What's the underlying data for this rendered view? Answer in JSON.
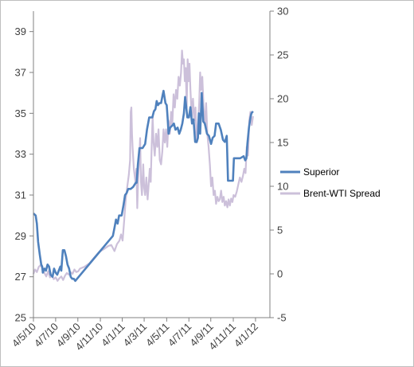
{
  "chart_data": {
    "type": "line",
    "title": "",
    "xlabel": "",
    "ylabel": "",
    "y2label": "",
    "x_tick_labels": [
      "4/5/10",
      "4/7/10",
      "4/9/10",
      "4/11/10",
      "4/1/11",
      "4/3/11",
      "4/5/11",
      "4/7/11",
      "4/9/11",
      "4/11/11",
      "4/1/12"
    ],
    "x_tick_dates": [
      "2010-04-05",
      "2010-06-15",
      "2010-08-25",
      "2010-11-05",
      "2011-01-14",
      "2011-03-25",
      "2011-06-05",
      "2011-08-15",
      "2011-10-24",
      "2012-01-04",
      "2012-03-15"
    ],
    "xlim": [
      "2010-04-05",
      "2012-04-30"
    ],
    "y_left": {
      "ylim": [
        25,
        40
      ],
      "ticks": [
        25,
        27,
        29,
        31,
        33,
        35,
        37,
        39
      ]
    },
    "y_right": {
      "ylim": [
        -5,
        30
      ],
      "ticks": [
        -5,
        0,
        5,
        10,
        15,
        20,
        25,
        30
      ]
    },
    "grid": false,
    "legend": "right",
    "series": [
      {
        "name": "Superior",
        "axis": "left",
        "color": "#4f81bd",
        "points": [
          [
            "2010-04-05",
            30.1
          ],
          [
            "2010-04-12",
            30.0
          ],
          [
            "2010-04-16",
            29.6
          ],
          [
            "2010-04-20",
            28.7
          ],
          [
            "2010-04-25",
            28.1
          ],
          [
            "2010-04-30",
            27.6
          ],
          [
            "2010-05-03",
            27.5
          ],
          [
            "2010-05-05",
            27.2
          ],
          [
            "2010-05-10",
            27.4
          ],
          [
            "2010-05-15",
            27.3
          ],
          [
            "2010-05-20",
            27.6
          ],
          [
            "2010-05-25",
            27.5
          ],
          [
            "2010-05-30",
            27.1
          ],
          [
            "2010-06-05",
            27.0
          ],
          [
            "2010-06-10",
            27.4
          ],
          [
            "2010-06-15",
            27.2
          ],
          [
            "2010-06-20",
            27.1
          ],
          [
            "2010-06-25",
            27.3
          ],
          [
            "2010-06-30",
            27.5
          ],
          [
            "2010-07-03",
            27.3
          ],
          [
            "2010-07-08",
            28.3
          ],
          [
            "2010-07-13",
            28.3
          ],
          [
            "2010-07-18",
            28.0
          ],
          [
            "2010-07-23",
            27.6
          ],
          [
            "2010-07-28",
            27.4
          ],
          [
            "2010-08-02",
            27.0
          ],
          [
            "2010-08-07",
            26.9
          ],
          [
            "2010-08-12",
            26.9
          ],
          [
            "2010-08-17",
            26.8
          ],
          [
            "2010-12-15",
            29.0
          ],
          [
            "2010-12-20",
            29.4
          ],
          [
            "2010-12-25",
            29.8
          ],
          [
            "2010-12-30",
            29.6
          ],
          [
            "2011-01-04",
            30.0
          ],
          [
            "2011-01-12",
            30.0
          ],
          [
            "2011-01-18",
            30.5
          ],
          [
            "2011-01-23",
            31.0
          ],
          [
            "2011-01-28",
            31.1
          ],
          [
            "2011-02-02",
            31.3
          ],
          [
            "2011-02-10",
            31.3
          ],
          [
            "2011-02-18",
            31.4
          ],
          [
            "2011-02-26",
            31.6
          ],
          [
            "2011-03-01",
            31.6
          ],
          [
            "2011-03-05",
            32.5
          ],
          [
            "2011-03-10",
            33.3
          ],
          [
            "2011-03-20",
            33.3
          ],
          [
            "2011-03-28",
            33.5
          ],
          [
            "2011-04-03",
            34.2
          ],
          [
            "2011-04-10",
            34.8
          ],
          [
            "2011-04-20",
            34.8
          ],
          [
            "2011-04-25",
            35.1
          ],
          [
            "2011-04-30",
            35.2
          ],
          [
            "2011-05-04",
            35.6
          ],
          [
            "2011-05-08",
            35.4
          ],
          [
            "2011-05-13",
            35.5
          ],
          [
            "2011-05-18",
            35.5
          ],
          [
            "2011-05-23",
            35.9
          ],
          [
            "2011-05-26",
            36.1
          ],
          [
            "2011-06-01",
            35.5
          ],
          [
            "2011-06-05",
            35.4
          ],
          [
            "2011-06-08",
            34.8
          ],
          [
            "2011-06-11",
            34.0
          ],
          [
            "2011-06-16",
            34.3
          ],
          [
            "2011-06-23",
            34.4
          ],
          [
            "2011-06-28",
            34.5
          ],
          [
            "2011-07-03",
            34.2
          ],
          [
            "2011-07-10",
            34.3
          ],
          [
            "2011-07-15",
            34.0
          ],
          [
            "2011-07-20",
            34.2
          ],
          [
            "2011-07-25",
            34.5
          ],
          [
            "2011-07-30",
            35.0
          ],
          [
            "2011-08-03",
            35.8
          ],
          [
            "2011-08-06",
            35.4
          ],
          [
            "2011-08-10",
            34.8
          ],
          [
            "2011-08-15",
            34.8
          ],
          [
            "2011-08-20",
            35.3
          ],
          [
            "2011-08-25",
            34.5
          ],
          [
            "2011-08-30",
            34.7
          ],
          [
            "2011-09-04",
            33.6
          ],
          [
            "2011-09-09",
            33.6
          ],
          [
            "2011-09-13",
            33.8
          ],
          [
            "2011-09-16",
            35.0
          ],
          [
            "2011-09-20",
            34.0
          ],
          [
            "2011-09-25",
            36.0
          ],
          [
            "2011-09-30",
            34.6
          ],
          [
            "2011-10-05",
            34.5
          ],
          [
            "2011-10-12",
            34.0
          ],
          [
            "2011-10-18",
            33.9
          ],
          [
            "2011-10-25",
            33.5
          ],
          [
            "2011-10-30",
            33.8
          ],
          [
            "2011-11-05",
            33.9
          ],
          [
            "2011-11-10",
            34.5
          ],
          [
            "2011-11-18",
            34.5
          ],
          [
            "2011-11-25",
            34.2
          ],
          [
            "2011-12-02",
            33.7
          ],
          [
            "2011-12-08",
            33.6
          ],
          [
            "2011-12-14",
            33.9
          ],
          [
            "2011-12-18",
            31.7
          ],
          [
            "2011-12-30",
            31.7
          ],
          [
            "2012-01-03",
            31.7
          ],
          [
            "2012-01-06",
            32.8
          ],
          [
            "2012-01-16",
            32.8
          ],
          [
            "2012-01-26",
            32.8
          ],
          [
            "2012-02-06",
            32.9
          ],
          [
            "2012-02-11",
            32.7
          ],
          [
            "2012-02-15",
            32.8
          ],
          [
            "2012-02-18",
            33.5
          ],
          [
            "2012-02-23",
            34.3
          ],
          [
            "2012-02-28",
            34.8
          ],
          [
            "2012-03-02",
            35.0
          ],
          [
            "2012-03-07",
            35.1
          ]
        ]
      },
      {
        "name": "Brent-WTI Spread",
        "axis": "right",
        "color": "#ccc0da",
        "points": [
          [
            "2010-04-05",
            0.0
          ],
          [
            "2010-04-10",
            0.5
          ],
          [
            "2010-04-16",
            0.2
          ],
          [
            "2010-04-22",
            0.8
          ],
          [
            "2010-04-28",
            1.0
          ],
          [
            "2010-05-04",
            0.6
          ],
          [
            "2010-05-10",
            0.1
          ],
          [
            "2010-05-16",
            -0.3
          ],
          [
            "2010-05-22",
            0.3
          ],
          [
            "2010-05-28",
            -0.4
          ],
          [
            "2010-06-03",
            -0.2
          ],
          [
            "2010-06-09",
            -0.6
          ],
          [
            "2010-06-15",
            -0.4
          ],
          [
            "2010-06-21",
            -0.8
          ],
          [
            "2010-06-27",
            -0.5
          ],
          [
            "2010-07-03",
            -0.3
          ],
          [
            "2010-07-09",
            -0.7
          ],
          [
            "2010-07-15",
            -0.2
          ],
          [
            "2010-07-21",
            0.1
          ],
          [
            "2010-07-27",
            -0.1
          ],
          [
            "2010-08-02",
            0.2
          ],
          [
            "2010-08-08",
            0.0
          ],
          [
            "2010-08-14",
            0.5
          ],
          [
            "2010-08-20",
            0.2
          ],
          [
            "2010-08-26",
            0.3
          ],
          [
            "2010-09-01",
            0.6
          ],
          [
            "2010-09-15",
            0.8
          ],
          [
            "2010-10-01",
            1.2
          ],
          [
            "2010-10-15",
            1.8
          ],
          [
            "2010-11-01",
            2.5
          ],
          [
            "2010-11-15",
            2.8
          ],
          [
            "2010-12-01",
            3.2
          ],
          [
            "2010-12-10",
            3.3
          ],
          [
            "2010-12-20",
            2.6
          ],
          [
            "2010-12-28",
            3.4
          ],
          [
            "2011-01-05",
            3.8
          ],
          [
            "2011-01-10",
            4.5
          ],
          [
            "2011-01-15",
            3.8
          ],
          [
            "2011-01-20",
            6.0
          ],
          [
            "2011-01-25",
            8.5
          ],
          [
            "2011-01-30",
            10.0
          ],
          [
            "2011-02-04",
            11.3
          ],
          [
            "2011-02-08",
            13.0
          ],
          [
            "2011-02-10",
            18.5
          ],
          [
            "2011-02-12",
            19.0
          ],
          [
            "2011-02-14",
            16.0
          ],
          [
            "2011-02-16",
            14.5
          ],
          [
            "2011-02-20",
            12.0
          ],
          [
            "2011-02-25",
            10.5
          ],
          [
            "2011-02-28",
            12.0
          ],
          [
            "2011-03-03",
            7.5
          ],
          [
            "2011-03-06",
            11.0
          ],
          [
            "2011-03-09",
            13.0
          ],
          [
            "2011-03-12",
            15.5
          ],
          [
            "2011-03-15",
            10.5
          ],
          [
            "2011-03-18",
            9.0
          ],
          [
            "2011-03-22",
            12.5
          ],
          [
            "2011-03-25",
            9.8
          ],
          [
            "2011-03-28",
            9.0
          ],
          [
            "2011-04-01",
            11.0
          ],
          [
            "2011-04-05",
            8.5
          ],
          [
            "2011-04-08",
            10.0
          ],
          [
            "2011-04-12",
            12.0
          ],
          [
            "2011-04-15",
            10.5
          ],
          [
            "2011-04-18",
            14.5
          ],
          [
            "2011-04-21",
            18.0
          ],
          [
            "2011-04-24",
            15.0
          ],
          [
            "2011-04-28",
            13.5
          ],
          [
            "2011-05-02",
            16.0
          ],
          [
            "2011-05-06",
            14.5
          ],
          [
            "2011-05-10",
            16.5
          ],
          [
            "2011-05-14",
            13.0
          ],
          [
            "2011-05-18",
            12.5
          ],
          [
            "2011-05-22",
            14.0
          ],
          [
            "2011-05-26",
            16.5
          ],
          [
            "2011-05-30",
            15.0
          ],
          [
            "2011-06-03",
            16.5
          ],
          [
            "2011-06-07",
            14.5
          ],
          [
            "2011-06-11",
            17.5
          ],
          [
            "2011-06-15",
            16.0
          ],
          [
            "2011-06-19",
            18.5
          ],
          [
            "2011-06-23",
            17.0
          ],
          [
            "2011-06-27",
            20.5
          ],
          [
            "2011-07-01",
            19.0
          ],
          [
            "2011-07-05",
            21.0
          ],
          [
            "2011-07-09",
            20.0
          ],
          [
            "2011-07-13",
            22.5
          ],
          [
            "2011-07-17",
            21.5
          ],
          [
            "2011-07-21",
            23.0
          ],
          [
            "2011-07-24",
            25.5
          ],
          [
            "2011-07-27",
            24.0
          ],
          [
            "2011-07-30",
            24.5
          ],
          [
            "2011-08-02",
            22.0
          ],
          [
            "2011-08-05",
            23.5
          ],
          [
            "2011-08-08",
            19.0
          ],
          [
            "2011-08-11",
            24.5
          ],
          [
            "2011-08-14",
            22.0
          ],
          [
            "2011-08-17",
            24.0
          ],
          [
            "2011-08-20",
            21.0
          ],
          [
            "2011-08-24",
            18.0
          ],
          [
            "2011-08-28",
            20.0
          ],
          [
            "2011-09-01",
            17.5
          ],
          [
            "2011-09-05",
            19.0
          ],
          [
            "2011-09-09",
            15.0
          ],
          [
            "2011-09-13",
            17.0
          ],
          [
            "2011-09-17",
            19.5
          ],
          [
            "2011-09-20",
            23.0
          ],
          [
            "2011-09-23",
            21.0
          ],
          [
            "2011-09-27",
            22.5
          ],
          [
            "2011-10-01",
            19.0
          ],
          [
            "2011-10-05",
            17.0
          ],
          [
            "2011-10-09",
            19.5
          ],
          [
            "2011-10-13",
            16.0
          ],
          [
            "2011-10-17",
            14.5
          ],
          [
            "2011-10-21",
            12.5
          ],
          [
            "2011-10-25",
            10.0
          ],
          [
            "2011-10-29",
            11.0
          ],
          [
            "2011-11-02",
            9.0
          ],
          [
            "2011-11-06",
            9.5
          ],
          [
            "2011-11-10",
            8.0
          ],
          [
            "2011-11-14",
            8.8
          ],
          [
            "2011-11-18",
            8.3
          ],
          [
            "2011-11-22",
            8.5
          ],
          [
            "2011-11-26",
            9.5
          ],
          [
            "2011-11-30",
            8.2
          ],
          [
            "2011-12-04",
            8.8
          ],
          [
            "2011-12-08",
            7.8
          ],
          [
            "2011-12-12",
            8.3
          ],
          [
            "2011-12-16",
            7.6
          ],
          [
            "2011-12-20",
            8.5
          ],
          [
            "2011-12-24",
            7.8
          ],
          [
            "2011-12-28",
            8.6
          ],
          [
            "2012-01-01",
            8.2
          ],
          [
            "2012-01-05",
            9.0
          ],
          [
            "2012-01-10",
            8.8
          ],
          [
            "2012-01-15",
            9.4
          ],
          [
            "2012-01-20",
            10.2
          ],
          [
            "2012-01-25",
            11.0
          ],
          [
            "2012-01-30",
            10.5
          ],
          [
            "2012-02-04",
            11.2
          ],
          [
            "2012-02-08",
            12.0
          ],
          [
            "2012-02-12",
            11.5
          ],
          [
            "2012-02-16",
            14.5
          ],
          [
            "2012-02-20",
            13.5
          ],
          [
            "2012-02-24",
            17.5
          ],
          [
            "2012-02-28",
            18.5
          ],
          [
            "2012-03-03",
            17.0
          ],
          [
            "2012-03-07",
            18.0
          ]
        ]
      }
    ]
  }
}
